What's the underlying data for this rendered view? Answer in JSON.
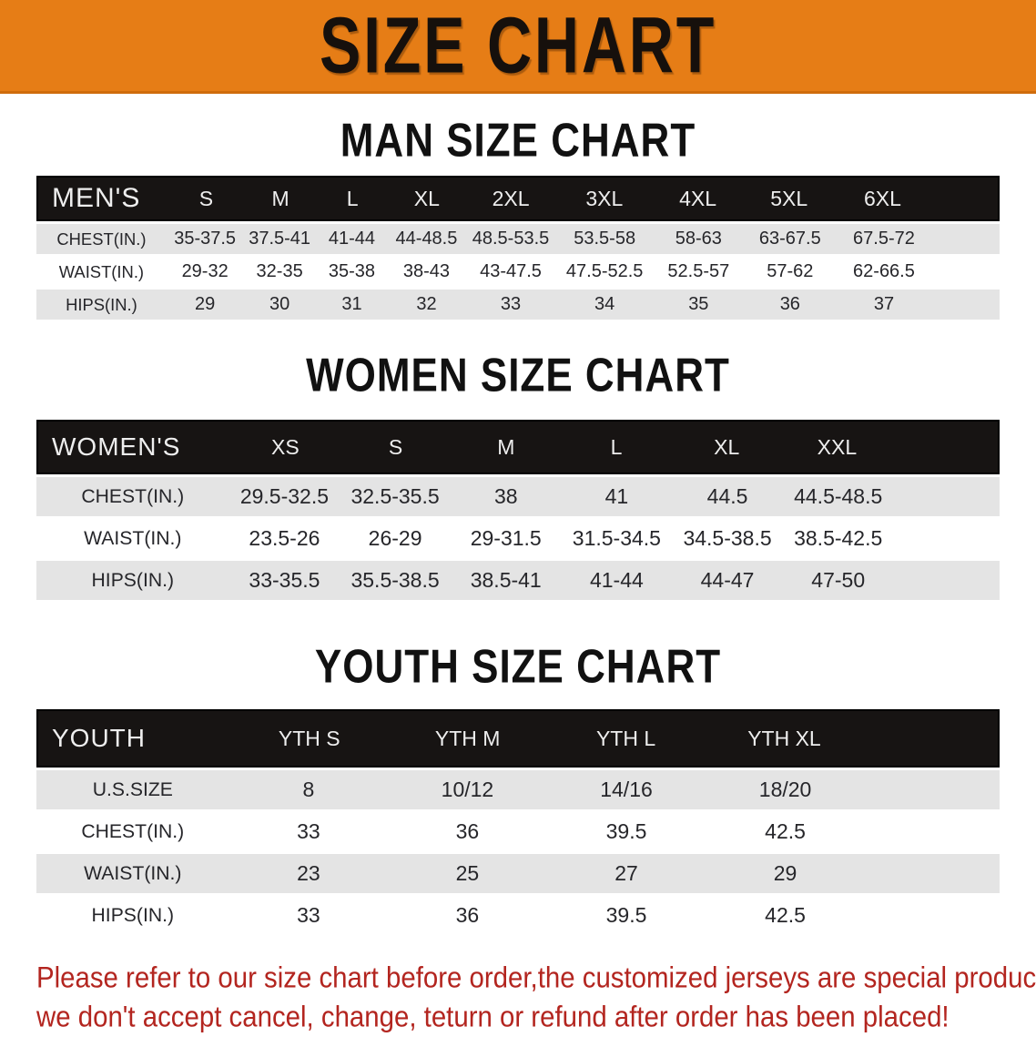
{
  "banner": {
    "title": "SIZE CHART"
  },
  "sections": [
    {
      "heading": "MAN SIZE CHART",
      "table": {
        "header_label": "MEN'S",
        "columns": [
          "S",
          "M",
          "L",
          "XL",
          "2XL",
          "3XL",
          "4XL",
          "5XL",
          "6XL"
        ],
        "rows": [
          {
            "label": "CHEST(IN.)",
            "values": [
              "35-37.5",
              "37.5-41",
              "41-44",
              "44-48.5",
              "48.5-53.5",
              "53.5-58",
              "58-63",
              "63-67.5",
              "67.5-72"
            ]
          },
          {
            "label": "WAIST(IN.)",
            "values": [
              "29-32",
              "32-35",
              "35-38",
              "38-43",
              "43-47.5",
              "47.5-52.5",
              "52.5-57",
              "57-62",
              "62-66.5"
            ]
          },
          {
            "label": "HIPS(IN.)",
            "values": [
              "29",
              "30",
              "31",
              "32",
              "33",
              "34",
              "35",
              "36",
              "37"
            ]
          }
        ]
      }
    },
    {
      "heading": "WOMEN SIZE CHART",
      "table": {
        "header_label": "WOMEN'S",
        "columns": [
          "XS",
          "S",
          "M",
          "L",
          "XL",
          "XXL"
        ],
        "rows": [
          {
            "label": "CHEST(IN.)",
            "values": [
              "29.5-32.5",
              "32.5-35.5",
              "38",
              "41",
              "44.5",
              "44.5-48.5"
            ]
          },
          {
            "label": "WAIST(IN.)",
            "values": [
              "23.5-26",
              "26-29",
              "29-31.5",
              "31.5-34.5",
              "34.5-38.5",
              "38.5-42.5"
            ]
          },
          {
            "label": "HIPS(IN.)",
            "values": [
              "33-35.5",
              "35.5-38.5",
              "38.5-41",
              "41-44",
              "44-47",
              "47-50"
            ]
          }
        ]
      }
    },
    {
      "heading": "YOUTH SIZE CHART",
      "table": {
        "header_label": "YOUTH",
        "columns": [
          "YTH S",
          "YTH M",
          "YTH L",
          "YTH XL"
        ],
        "rows": [
          {
            "label": "U.S.SIZE",
            "values": [
              "8",
              "10/12",
              "14/16",
              "18/20"
            ]
          },
          {
            "label": "CHEST(IN.)",
            "values": [
              "33",
              "36",
              "39.5",
              "42.5"
            ]
          },
          {
            "label": "WAIST(IN.)",
            "values": [
              "23",
              "25",
              "27",
              "29"
            ]
          },
          {
            "label": "HIPS(IN.)",
            "values": [
              "33",
              "36",
              "39.5",
              "42.5"
            ]
          }
        ]
      }
    }
  ],
  "footer": {
    "line1": "Please refer to our size chart before order,the customized jerseys are special products,",
    "line2": "we don't accept cancel, change, teturn or refund after order has been placed!"
  },
  "colors": {
    "banner_bg": "#e67d16",
    "header_bar_bg": "#171413",
    "row_shade": "#e4e4e4",
    "disclaimer_text": "#b3251f"
  }
}
